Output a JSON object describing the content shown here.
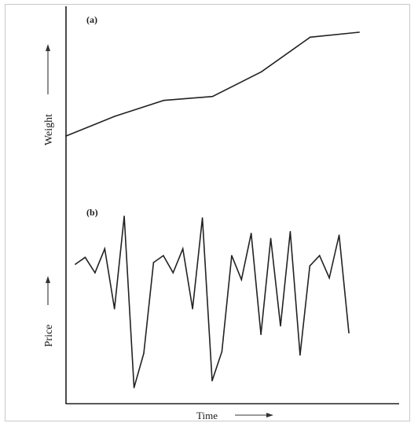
{
  "chart_data": [
    {
      "type": "line",
      "panel_label": "(a)",
      "ylabel": "Weight",
      "xlabel": "",
      "ylim": [
        0,
        100
      ],
      "x": [
        0,
        1,
        2,
        3,
        4,
        5,
        6
      ],
      "series": [
        {
          "values": [
            0,
            20,
            36,
            40,
            65,
            100,
            105
          ]
        }
      ]
    },
    {
      "type": "line",
      "panel_label": "(b)",
      "ylabel": "Price",
      "xlabel": "Time",
      "ylim": [
        0,
        100
      ],
      "x": [
        0,
        1,
        2,
        3,
        4,
        5,
        6,
        7,
        8,
        9,
        10,
        11,
        12,
        13,
        14,
        15,
        16,
        17,
        18,
        19,
        20,
        21,
        22,
        23,
        24,
        25,
        26,
        27,
        28
      ],
      "series": [
        {
          "values": [
            72,
            76,
            67,
            81,
            46,
            100,
            0,
            20,
            73,
            77,
            67,
            81,
            46,
            99,
            4,
            21,
            77,
            63,
            90,
            31,
            87,
            36,
            91,
            19,
            71,
            77,
            64,
            89,
            32
          ]
        }
      ]
    }
  ]
}
